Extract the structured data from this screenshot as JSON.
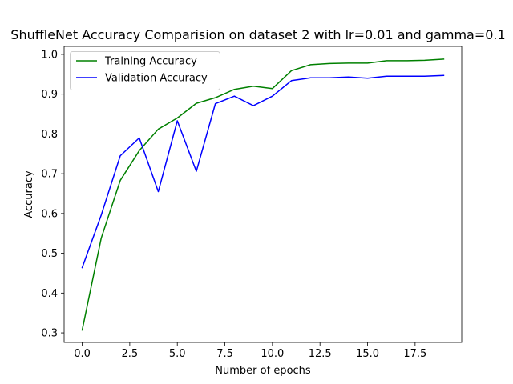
{
  "chart_data": {
    "type": "line",
    "title": "ShuffleNet Accuracy Comparision on dataset 2 with lr=0.01 and gamma=0.1",
    "xlabel": "Number of epochs",
    "ylabel": "Accuracy",
    "xlim": [
      -0.95,
      19.95
    ],
    "ylim": [
      0.276,
      1.02
    ],
    "xticks": [
      0,
      2.5,
      5,
      7.5,
      10,
      12.5,
      15,
      17.5
    ],
    "xtick_labels": [
      "0.0",
      "2.5",
      "5.0",
      "7.5",
      "10.0",
      "12.5",
      "15.0",
      "17.5"
    ],
    "yticks": [
      0.3,
      0.4,
      0.5,
      0.6,
      0.7,
      0.8,
      0.9,
      1.0
    ],
    "ytick_labels": [
      "0.3",
      "0.4",
      "0.5",
      "0.6",
      "0.7",
      "0.8",
      "0.9",
      "1.0"
    ],
    "grid": false,
    "legend_position": "top-left",
    "x": [
      0,
      1,
      2,
      3,
      4,
      5,
      6,
      7,
      8,
      9,
      10,
      11,
      12,
      13,
      14,
      15,
      16,
      17,
      18,
      19
    ],
    "series": [
      {
        "name": "Training Accuracy",
        "color": "#008000",
        "values": [
          0.307,
          0.538,
          0.683,
          0.758,
          0.812,
          0.84,
          0.877,
          0.891,
          0.912,
          0.92,
          0.914,
          0.959,
          0.974,
          0.977,
          0.978,
          0.978,
          0.984,
          0.984,
          0.985,
          0.988
        ]
      },
      {
        "name": "Validation Accuracy",
        "color": "#0000ff",
        "values": [
          0.464,
          0.596,
          0.745,
          0.79,
          0.655,
          0.833,
          0.706,
          0.876,
          0.895,
          0.871,
          0.895,
          0.934,
          0.941,
          0.941,
          0.943,
          0.94,
          0.945,
          0.945,
          0.945,
          0.947
        ]
      }
    ]
  }
}
